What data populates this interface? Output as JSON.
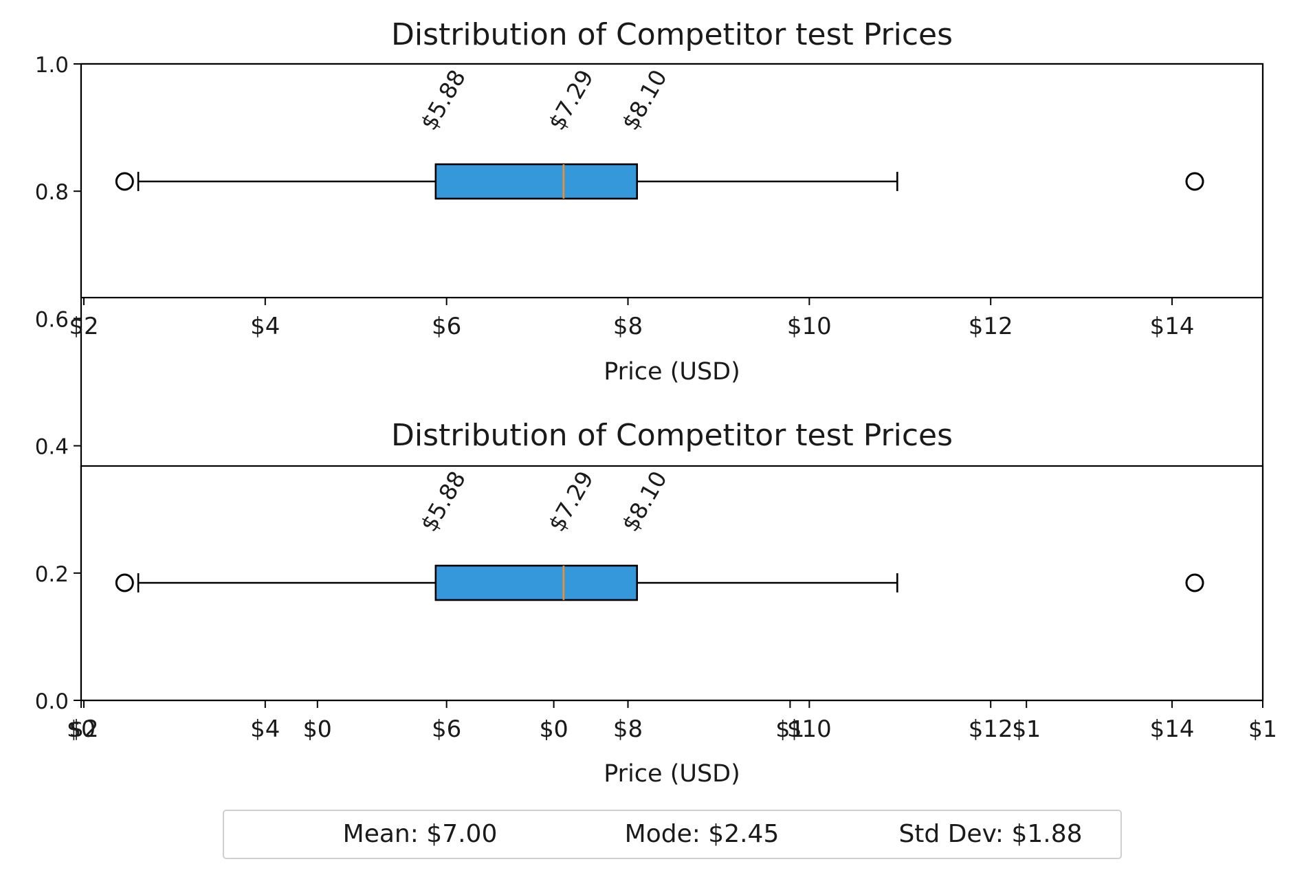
{
  "chart_data": [
    {
      "type": "boxplot",
      "title": "Distribution of Competitor test Prices",
      "xlabel": "Price (USD)",
      "ylabel": "",
      "xlim": [
        1.97,
        15.0
      ],
      "xticks": [
        "$2",
        "$4",
        "$6",
        "$8",
        "$10",
        "$12",
        "$14"
      ],
      "box": {
        "whisker_low": 2.6,
        "q1": 5.88,
        "median": 7.29,
        "q3": 8.1,
        "whisker_high": 10.97
      },
      "outliers": [
        2.45,
        14.25
      ],
      "annotations": [
        "$5.88",
        "$7.29",
        "$8.10"
      ]
    },
    {
      "type": "boxplot",
      "title": "Distribution of Competitor test Prices",
      "xlabel": "Price (USD)",
      "ylabel": "",
      "xlim": [
        1.97,
        15.0
      ],
      "xticks": [
        "$2",
        "$4",
        "$6",
        "$8",
        "$10",
        "$12",
        "$14"
      ],
      "secondary_xticks": [
        "$0",
        "$0",
        "$0",
        "$1",
        "$1",
        "$1"
      ],
      "box": {
        "whisker_low": 2.6,
        "q1": 5.88,
        "median": 7.29,
        "q3": 8.1,
        "whisker_high": 10.97
      },
      "outliers": [
        2.45,
        14.25
      ],
      "annotations": [
        "$5.88",
        "$7.29",
        "$8.10"
      ]
    }
  ],
  "background_axis": {
    "yticks": [
      "0.0",
      "0.2",
      "0.4",
      "0.6",
      "0.8",
      "1.0"
    ],
    "ylim": [
      0,
      1
    ],
    "xticks": [
      "$0",
      "$1"
    ]
  },
  "stats": {
    "mean": "Mean: $7.00",
    "mode": "Mode: $2.45",
    "std": "Std Dev: $1.88"
  },
  "colors": {
    "box_fill": "#3498db",
    "median": "#f28e2b",
    "axis": "#000000"
  }
}
